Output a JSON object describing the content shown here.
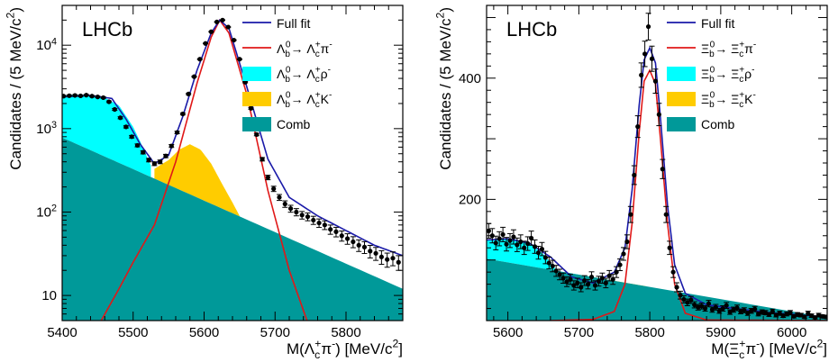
{
  "chart_data": [
    {
      "type": "line",
      "experiment_label": "LHCb",
      "xlabel": "M(Λc+π-) [MeV/c2]",
      "ylabel": "Candidates / (5 MeV/c2)",
      "xlim": [
        5400,
        5880
      ],
      "ylim": [
        5,
        30000
      ],
      "yscale": "log",
      "xticks": [
        5400,
        5500,
        5600,
        5700,
        5800
      ],
      "yticks": [
        {
          "value": 10,
          "label": "10"
        },
        {
          "value": 100,
          "label": "10^2"
        },
        {
          "value": 1000,
          "label": "10^3"
        },
        {
          "value": 10000,
          "label": "10^4"
        }
      ],
      "legend_placement": "top-right",
      "legend": [
        {
          "label": "Full fit",
          "kind": "line",
          "color": "#1a1aa8"
        },
        {
          "label": "Λb0→ Λc+π-",
          "kind": "line",
          "color": "#e01818"
        },
        {
          "label": "Λb0→ Λc+ρ-",
          "kind": "fill",
          "color": "#00ffff"
        },
        {
          "label": "Λb0→ Λc+K-",
          "kind": "fill",
          "color": "#ffcc00"
        },
        {
          "label": "Comb",
          "kind": "fill",
          "color": "#009999"
        }
      ],
      "series": [
        {
          "name": "Comb",
          "kind": "area",
          "x": [
            5400,
            5880
          ],
          "y": [
            780,
            12
          ]
        },
        {
          "name": "Λb0→ Λc+ρ-",
          "kind": "area",
          "x": [
            5400,
            5430,
            5460,
            5480,
            5500,
            5510,
            5520,
            5525
          ],
          "y": [
            2500,
            2550,
            2350,
            1900,
            1050,
            700,
            450,
            360
          ]
        },
        {
          "name": "Λb0→ Λc+K-",
          "kind": "area",
          "x": [
            5530,
            5550,
            5565,
            5580,
            5595,
            5610,
            5625,
            5640,
            5650
          ],
          "y": [
            330,
            420,
            560,
            650,
            560,
            380,
            220,
            130,
            90
          ]
        },
        {
          "name": "Λb0→ Λc+π-",
          "kind": "line",
          "x": [
            5455,
            5480,
            5500,
            5530,
            5560,
            5590,
            5610,
            5622,
            5635,
            5660,
            5690,
            5720,
            5745
          ],
          "y": [
            5,
            12,
            25,
            70,
            400,
            3500,
            12500,
            20000,
            14000,
            2600,
            180,
            20,
            5
          ]
        },
        {
          "name": "Full fit",
          "kind": "line",
          "x": [
            5400,
            5440,
            5470,
            5490,
            5510,
            5530,
            5550,
            5570,
            5590,
            5610,
            5622,
            5635,
            5660,
            5690,
            5720,
            5760,
            5800,
            5840,
            5880
          ],
          "y": [
            2400,
            2500,
            2300,
            1300,
            650,
            380,
            480,
            1400,
            5000,
            14000,
            20000,
            16000,
            3200,
            430,
            150,
            90,
            60,
            40,
            30
          ]
        },
        {
          "name": "Data",
          "kind": "scatter",
          "x": [
            5402,
            5410,
            5418,
            5426,
            5434,
            5442,
            5450,
            5458,
            5466,
            5474,
            5482,
            5490,
            5498,
            5506,
            5514,
            5522,
            5530,
            5538,
            5546,
            5554,
            5562,
            5570,
            5578,
            5586,
            5594,
            5602,
            5610,
            5618,
            5626,
            5634,
            5642,
            5650,
            5658,
            5666,
            5674,
            5682,
            5690,
            5698,
            5706,
            5714,
            5722,
            5730,
            5738,
            5746,
            5754,
            5762,
            5770,
            5778,
            5786,
            5794,
            5802,
            5810,
            5818,
            5826,
            5834,
            5842,
            5850,
            5858,
            5866,
            5874
          ],
          "y": [
            2450,
            2480,
            2500,
            2470,
            2520,
            2450,
            2400,
            2350,
            2100,
            1700,
            1350,
            1050,
            800,
            630,
            520,
            420,
            380,
            400,
            470,
            620,
            900,
            1500,
            2600,
            4200,
            6800,
            10500,
            14500,
            19000,
            20000,
            16500,
            11500,
            6800,
            3600,
            1750,
            850,
            430,
            260,
            190,
            150,
            125,
            110,
            100,
            92,
            88,
            80,
            74,
            70,
            62,
            58,
            52,
            48,
            44,
            40,
            38,
            34,
            32,
            29,
            27,
            28,
            25
          ]
        }
      ]
    },
    {
      "type": "line",
      "experiment_label": "LHCb",
      "xlabel": "M(Ξc+π-) [MeV/c2]",
      "ylabel": "Candidates / (5 MeV/c2)",
      "xlim": [
        5570,
        6050
      ],
      "ylim": [
        0,
        520
      ],
      "yscale": "linear",
      "xticks": [
        5600,
        5700,
        5800,
        5900,
        6000
      ],
      "yticks": [
        {
          "value": 200,
          "label": "200"
        },
        {
          "value": 400,
          "label": "400"
        }
      ],
      "legend_placement": "top-right",
      "legend": [
        {
          "label": "Full fit",
          "kind": "line",
          "color": "#1a1aa8"
        },
        {
          "label": "Ξb0→ Ξc+π-",
          "kind": "line",
          "color": "#e01818"
        },
        {
          "label": "Ξb0→ Ξc+ρ-",
          "kind": "fill",
          "color": "#00ffff"
        },
        {
          "label": "Ξb0→ Ξc+K-",
          "kind": "fill",
          "color": "#ffcc00"
        },
        {
          "label": "Comb",
          "kind": "fill",
          "color": "#009999"
        }
      ],
      "series": [
        {
          "name": "Comb",
          "kind": "area",
          "x": [
            5570,
            6050
          ],
          "y": [
            102,
            5
          ]
        },
        {
          "name": "Ξb0→ Ξc+ρ-",
          "kind": "area",
          "x": [
            5570,
            5590,
            5610,
            5630,
            5650,
            5665,
            5680,
            5695,
            5710
          ],
          "y": [
            132,
            136,
            134,
            127,
            110,
            88,
            70,
            60,
            55
          ]
        },
        {
          "name": "Ξb0→ Ξc+K-",
          "kind": "area",
          "x": [
            5700,
            5720,
            5735,
            5750,
            5765,
            5780,
            5795
          ],
          "y": [
            56,
            60,
            64,
            64,
            57,
            48,
            40
          ]
        },
        {
          "name": "Ξb0→ Ξc+π-",
          "kind": "line",
          "x": [
            5660,
            5720,
            5750,
            5765,
            5775,
            5785,
            5792,
            5800,
            5808,
            5815,
            5825,
            5835,
            5850,
            5880,
            6050
          ],
          "y": [
            0,
            2,
            15,
            60,
            160,
            310,
            395,
            413,
            390,
            300,
            160,
            60,
            12,
            1,
            0
          ]
        },
        {
          "name": "Full fit",
          "kind": "line",
          "x": [
            5570,
            5600,
            5630,
            5660,
            5690,
            5720,
            5750,
            5765,
            5775,
            5785,
            5792,
            5800,
            5808,
            5815,
            5825,
            5835,
            5850,
            5880,
            5920,
            5970,
            6050
          ],
          "y": [
            133,
            135,
            128,
            105,
            72,
            62,
            80,
            120,
            215,
            355,
            430,
            450,
            425,
            335,
            190,
            92,
            45,
            26,
            20,
            13,
            6
          ]
        },
        {
          "name": "Data",
          "kind": "scatter",
          "x": [
            5573,
            5578,
            5583,
            5588,
            5593,
            5598,
            5603,
            5608,
            5613,
            5618,
            5623,
            5628,
            5633,
            5638,
            5643,
            5648,
            5653,
            5658,
            5663,
            5668,
            5673,
            5678,
            5683,
            5688,
            5693,
            5698,
            5703,
            5708,
            5713,
            5718,
            5723,
            5728,
            5733,
            5738,
            5743,
            5748,
            5753,
            5758,
            5763,
            5768,
            5773,
            5778,
            5783,
            5788,
            5793,
            5798,
            5803,
            5808,
            5813,
            5818,
            5823,
            5828,
            5833,
            5838,
            5843,
            5848,
            5853,
            5858,
            5863,
            5868,
            5873,
            5878,
            5883,
            5888,
            5893,
            5898,
            5903,
            5908,
            5913,
            5918,
            5923,
            5928,
            5933,
            5938,
            5943,
            5948,
            5953,
            5958,
            5963,
            5968,
            5973,
            5978,
            5983,
            5988,
            5993,
            5998,
            6003,
            6008,
            6013,
            6018,
            6023,
            6028,
            6033,
            6038,
            6043,
            6048
          ],
          "y": [
            148,
            140,
            128,
            135,
            142,
            126,
            132,
            138,
            125,
            130,
            120,
            127,
            136,
            122,
            112,
            118,
            104,
            95,
            90,
            82,
            76,
            70,
            64,
            68,
            58,
            62,
            55,
            66,
            60,
            72,
            58,
            65,
            70,
            62,
            74,
            68,
            80,
            92,
            110,
            130,
            175,
            240,
            320,
            405,
            440,
            485,
            432,
            395,
            340,
            250,
            175,
            120,
            80,
            55,
            42,
            35,
            30,
            34,
            26,
            22,
            24,
            20,
            28,
            18,
            22,
            16,
            20,
            25,
            14,
            18,
            21,
            15,
            17,
            12,
            16,
            19,
            11,
            14,
            13,
            10,
            15,
            9,
            12,
            8,
            11,
            13,
            7,
            10,
            9,
            6,
            12,
            8,
            5,
            9,
            7,
            6
          ]
        }
      ]
    }
  ]
}
